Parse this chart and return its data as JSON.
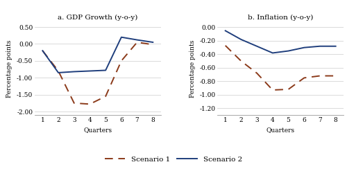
{
  "quarters": [
    1,
    2,
    3,
    4,
    5,
    6,
    7,
    8
  ],
  "gdp_scenario1": [
    -0.2,
    -0.8,
    -1.75,
    -1.78,
    -1.55,
    -0.5,
    0.05,
    -0.02
  ],
  "gdp_scenario2": [
    -0.2,
    -0.85,
    -0.82,
    -0.8,
    -0.78,
    0.2,
    0.12,
    0.05
  ],
  "inf_scenario1": [
    -0.27,
    -0.5,
    -0.68,
    -0.93,
    -0.92,
    -0.75,
    -0.72,
    -0.72
  ],
  "inf_scenario2": [
    -0.05,
    -0.18,
    -0.28,
    -0.38,
    -0.35,
    -0.3,
    -0.28,
    -0.28
  ],
  "gdp_title": "a. GDP Growth (y-o-y)",
  "inf_title": "b. Inflation (y-o-y)",
  "xlabel": "Quarters",
  "ylabel": "Percentage points",
  "gdp_ylim": [
    -2.1,
    0.65
  ],
  "gdp_yticks": [
    0.5,
    0.0,
    -0.5,
    -1.0,
    -1.5,
    -2.0
  ],
  "inf_ylim": [
    -1.3,
    0.08
  ],
  "inf_yticks": [
    0.0,
    -0.2,
    -0.4,
    -0.6,
    -0.8,
    -1.0,
    -1.2
  ],
  "color_s1": "#8B3A1A",
  "color_s2": "#1F3E7C",
  "label_s1": "Scenario 1",
  "label_s2": "Scenario 2",
  "title_fontsize": 7.5,
  "label_fontsize": 6.5,
  "tick_fontsize": 6.5,
  "legend_fontsize": 7.5
}
